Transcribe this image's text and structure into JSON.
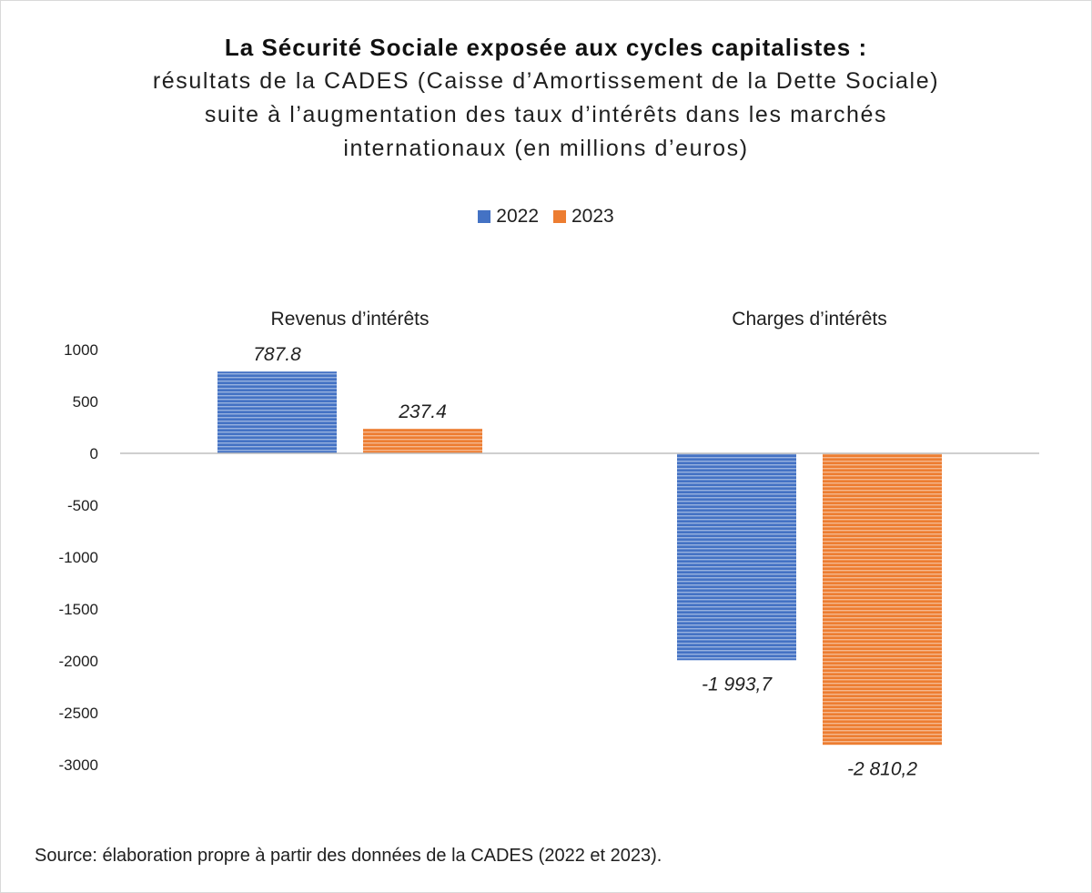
{
  "title": "La Sécurité Sociale exposée aux cycles capitalistes :",
  "subtitle_lines": [
    "résultats de la CADES (Caisse d’Amortissement de la Dette Sociale)",
    "suite à l’augmentation des taux d’intérêts dans les marchés",
    "internationaux (en millions d’euros)"
  ],
  "source": "Source: élaboration propre à partir des données de la CADES (2022 et 2023).",
  "colors": {
    "series_2022": "#4472C4",
    "series_2023": "#ED7D31",
    "axis": "#bfbfbf"
  },
  "chart_data": {
    "type": "bar",
    "categories": [
      "Revenus d’intérêts",
      "Charges d’intérêts"
    ],
    "series": [
      {
        "name": "2022",
        "values": [
          787.8,
          -1993.7
        ],
        "labels": [
          "787.8",
          "-1 993,7"
        ]
      },
      {
        "name": "2023",
        "values": [
          237.4,
          -2810.2
        ],
        "labels": [
          "237.4",
          "-2 810,2"
        ]
      }
    ],
    "ylim": [
      -3000,
      1000
    ],
    "yticks": [
      1000,
      500,
      0,
      -500,
      -1000,
      -1500,
      -2000,
      -2500,
      -3000
    ],
    "ytick_labels": [
      "1000",
      "500",
      "0",
      "-500",
      "-1000",
      "-1500",
      "-2000",
      "-2500",
      "-3000"
    ],
    "legend_position": "top-center",
    "category_labels_position": "top",
    "grid": false
  }
}
